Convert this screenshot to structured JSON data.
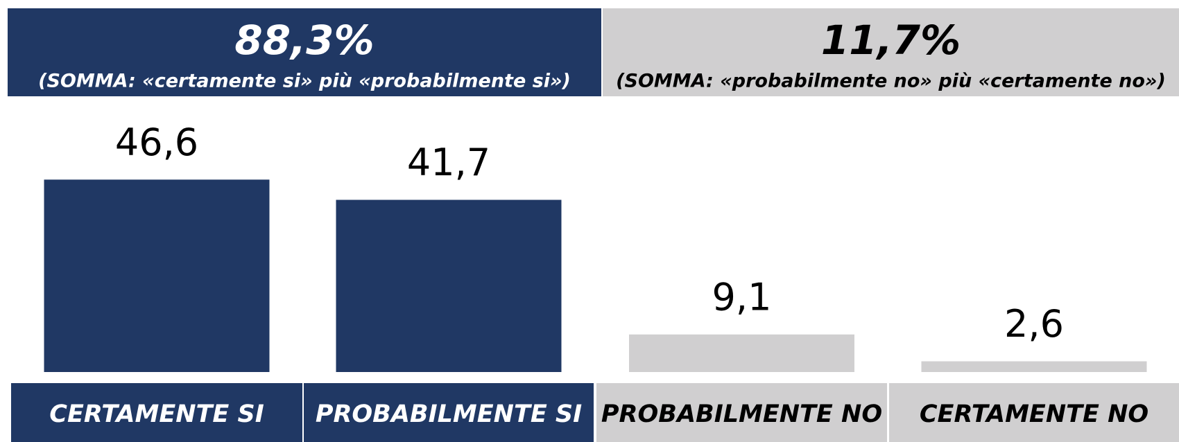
{
  "chart_data": {
    "type": "bar",
    "groups": [
      {
        "label": "88,3%",
        "caption": "(SOMMA: «certamente si» più «probabilmente si»)",
        "color": "#203864",
        "text_color": "#ffffff"
      },
      {
        "label": "11,7%",
        "caption": "(SOMMA: «probabilmente no» più «certamente no»)",
        "color": "#d0cfd0",
        "text_color": "#000000"
      }
    ],
    "categories": [
      "CERTAMENTE SI",
      "PROBABILMENTE SI",
      "PROBABILMENTE NO",
      "CERTAMENTE NO"
    ],
    "values": [
      46.6,
      41.7,
      9.1,
      2.6
    ],
    "value_labels": [
      "46,6",
      "41,7",
      "9,1",
      "2,6"
    ],
    "colors": [
      "#203864",
      "#203864",
      "#d0cfd0",
      "#d0cfd0"
    ],
    "label_text_colors": [
      "#ffffff",
      "#ffffff",
      "#000000",
      "#000000"
    ]
  }
}
